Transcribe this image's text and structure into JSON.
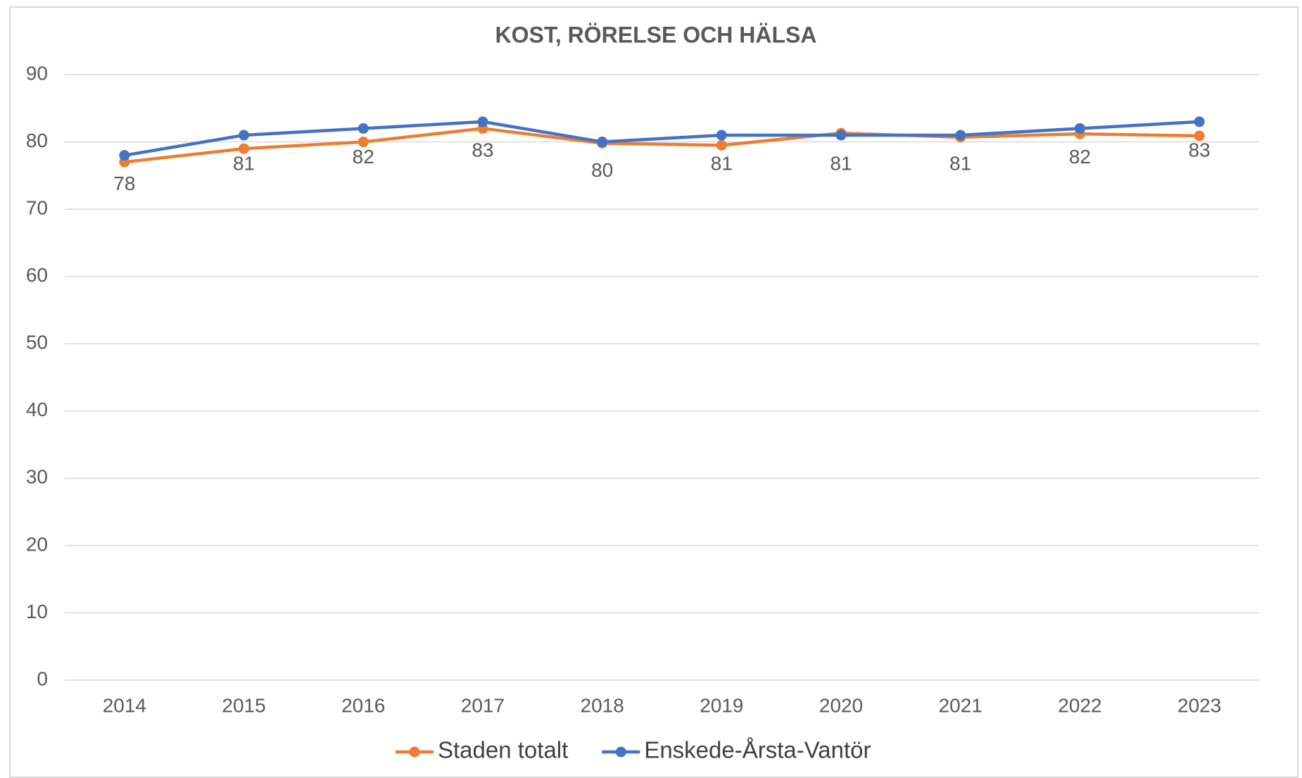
{
  "chart_data": {
    "type": "line",
    "title": "KOST, RÖRELSE OCH HÄLSA",
    "categories": [
      "2014",
      "2015",
      "2016",
      "2017",
      "2018",
      "2019",
      "2020",
      "2021",
      "2022",
      "2023"
    ],
    "series": [
      {
        "name": "Staden totalt",
        "color": "#ed7d31",
        "values": [
          77,
          79,
          80,
          82,
          79.8,
          79.5,
          81.3,
          80.7,
          81.2,
          80.9
        ]
      },
      {
        "name": "Enskede-Årsta-Vantör",
        "color": "#4472c4",
        "values": [
          78,
          81,
          82,
          83,
          80,
          81,
          81,
          81,
          82,
          83
        ],
        "data_labels": true
      }
    ],
    "ylim": [
      0,
      90
    ],
    "yticks": [
      0,
      10,
      20,
      30,
      40,
      50,
      60,
      70,
      80,
      90
    ],
    "grid": true,
    "legend": "bottom"
  }
}
